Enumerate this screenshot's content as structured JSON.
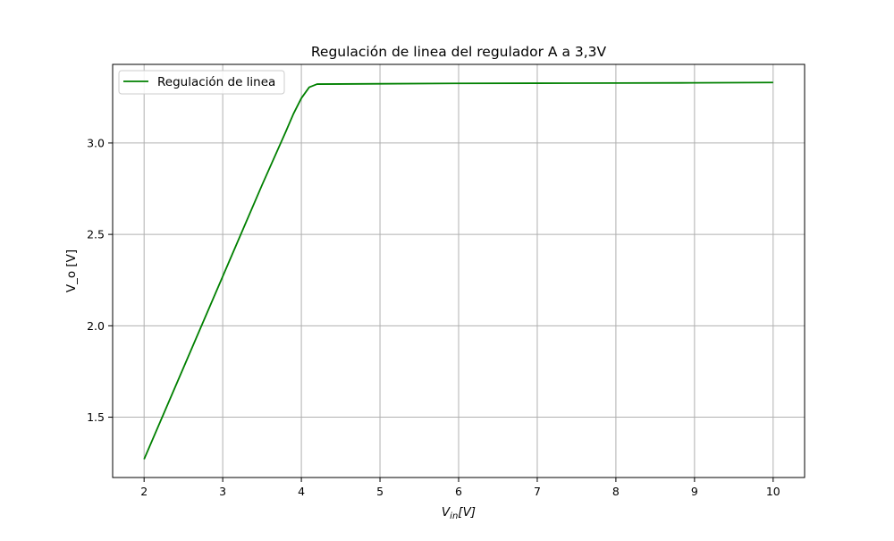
{
  "chart_data": {
    "type": "line",
    "title": "Regulación de linea del regulador A a 3,3V",
    "xlabel": "V_in[V]",
    "xlabel_parts": {
      "base": "V",
      "sub": "in",
      "rest": "[V]"
    },
    "ylabel": "V_o [V]",
    "xlim": [
      1.6,
      10.4
    ],
    "ylim": [
      1.17,
      3.43
    ],
    "x_ticks": [
      2,
      3,
      4,
      5,
      6,
      7,
      8,
      9,
      10
    ],
    "y_ticks": [
      1.5,
      2.0,
      2.5,
      3.0
    ],
    "y_tick_labels": [
      "1.5",
      "2.0",
      "2.5",
      "3.0"
    ],
    "grid": true,
    "legend_position": "top-left",
    "series": [
      {
        "name": "Regulación de linea",
        "color": "#008000",
        "x": [
          2.0,
          2.5,
          3.0,
          3.5,
          3.8,
          3.9,
          4.0,
          4.1,
          4.2,
          5.0,
          6.0,
          7.0,
          8.0,
          9.0,
          10.0
        ],
        "y": [
          1.27,
          1.77,
          2.27,
          2.77,
          3.06,
          3.16,
          3.245,
          3.305,
          3.322,
          3.324,
          3.326,
          3.327,
          3.328,
          3.329,
          3.331
        ]
      }
    ]
  }
}
